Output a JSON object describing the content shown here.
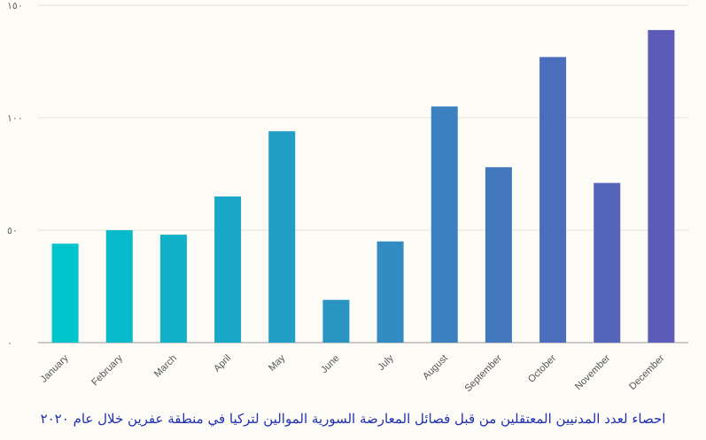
{
  "chart_data": {
    "type": "bar",
    "categories": [
      "January",
      "February",
      "March",
      "April",
      "May",
      "June",
      "July",
      "August",
      "September",
      "October",
      "November",
      "December"
    ],
    "values": [
      44,
      50,
      48,
      65,
      94,
      19,
      45,
      105,
      78,
      127,
      71,
      139
    ],
    "ylim": [
      0,
      150
    ],
    "yticks": [
      0,
      50,
      100,
      150
    ],
    "ytick_labels": [
      "٠",
      "٥٠",
      "١٠٠",
      "١٥٠"
    ],
    "grid": true,
    "title": "",
    "xlabel": "",
    "ylabel": "",
    "color_start": "#00c4cc",
    "color_end": "#5c5bb8"
  },
  "caption": "احصاء لعدد المدنيين المعتقلين من قبل فصائل المعارضة السورية الموالين لتركيا في منطقة عفرين خلال عام ٢٠٢٠"
}
